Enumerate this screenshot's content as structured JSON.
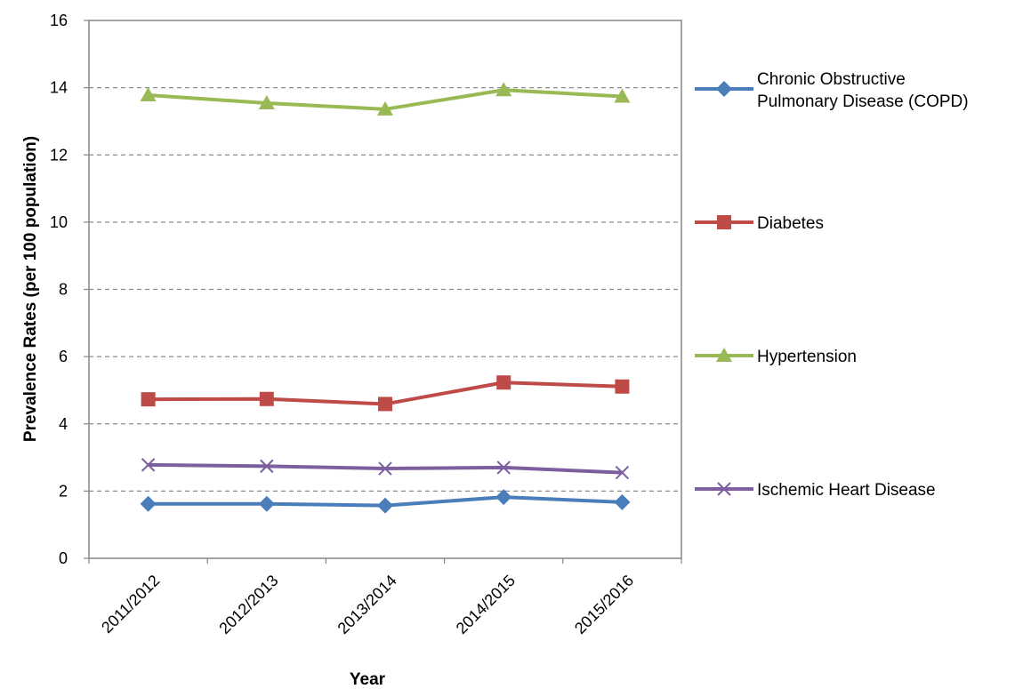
{
  "chart_data": {
    "type": "line",
    "title": "",
    "xlabel": "Year",
    "ylabel": "Prevalence Rates (per 100 population)",
    "ylim": [
      0,
      16
    ],
    "yticks": [
      0,
      2,
      4,
      6,
      8,
      10,
      12,
      14,
      16
    ],
    "grid": "horizontal dashed",
    "legend_position": "right",
    "categories": [
      "2011/2012",
      "2012/2013",
      "2013/2014",
      "2014/2015",
      "2015/2016"
    ],
    "series": [
      {
        "name": "Chronic Obstructive Pulmonary Disease (COPD)",
        "legend_lines": [
          "Chronic Obstructive",
          "Pulmonary Disease (COPD)"
        ],
        "color": "#4a7ebb",
        "marker": "diamond",
        "values": [
          1.62,
          1.62,
          1.57,
          1.82,
          1.67
        ]
      },
      {
        "name": "Diabetes",
        "legend_lines": [
          "Diabetes"
        ],
        "color": "#be4b48",
        "marker": "square",
        "values": [
          4.73,
          4.74,
          4.59,
          5.23,
          5.11
        ]
      },
      {
        "name": "Hypertension",
        "legend_lines": [
          "Hypertension"
        ],
        "color": "#98b954",
        "marker": "triangle",
        "values": [
          13.78,
          13.54,
          13.36,
          13.93,
          13.74
        ]
      },
      {
        "name": "Ischemic Heart Disease",
        "legend_lines": [
          "Ischemic Heart Disease"
        ],
        "color": "#7d5fa0",
        "marker": "x",
        "values": [
          2.78,
          2.74,
          2.67,
          2.7,
          2.55
        ]
      }
    ]
  }
}
